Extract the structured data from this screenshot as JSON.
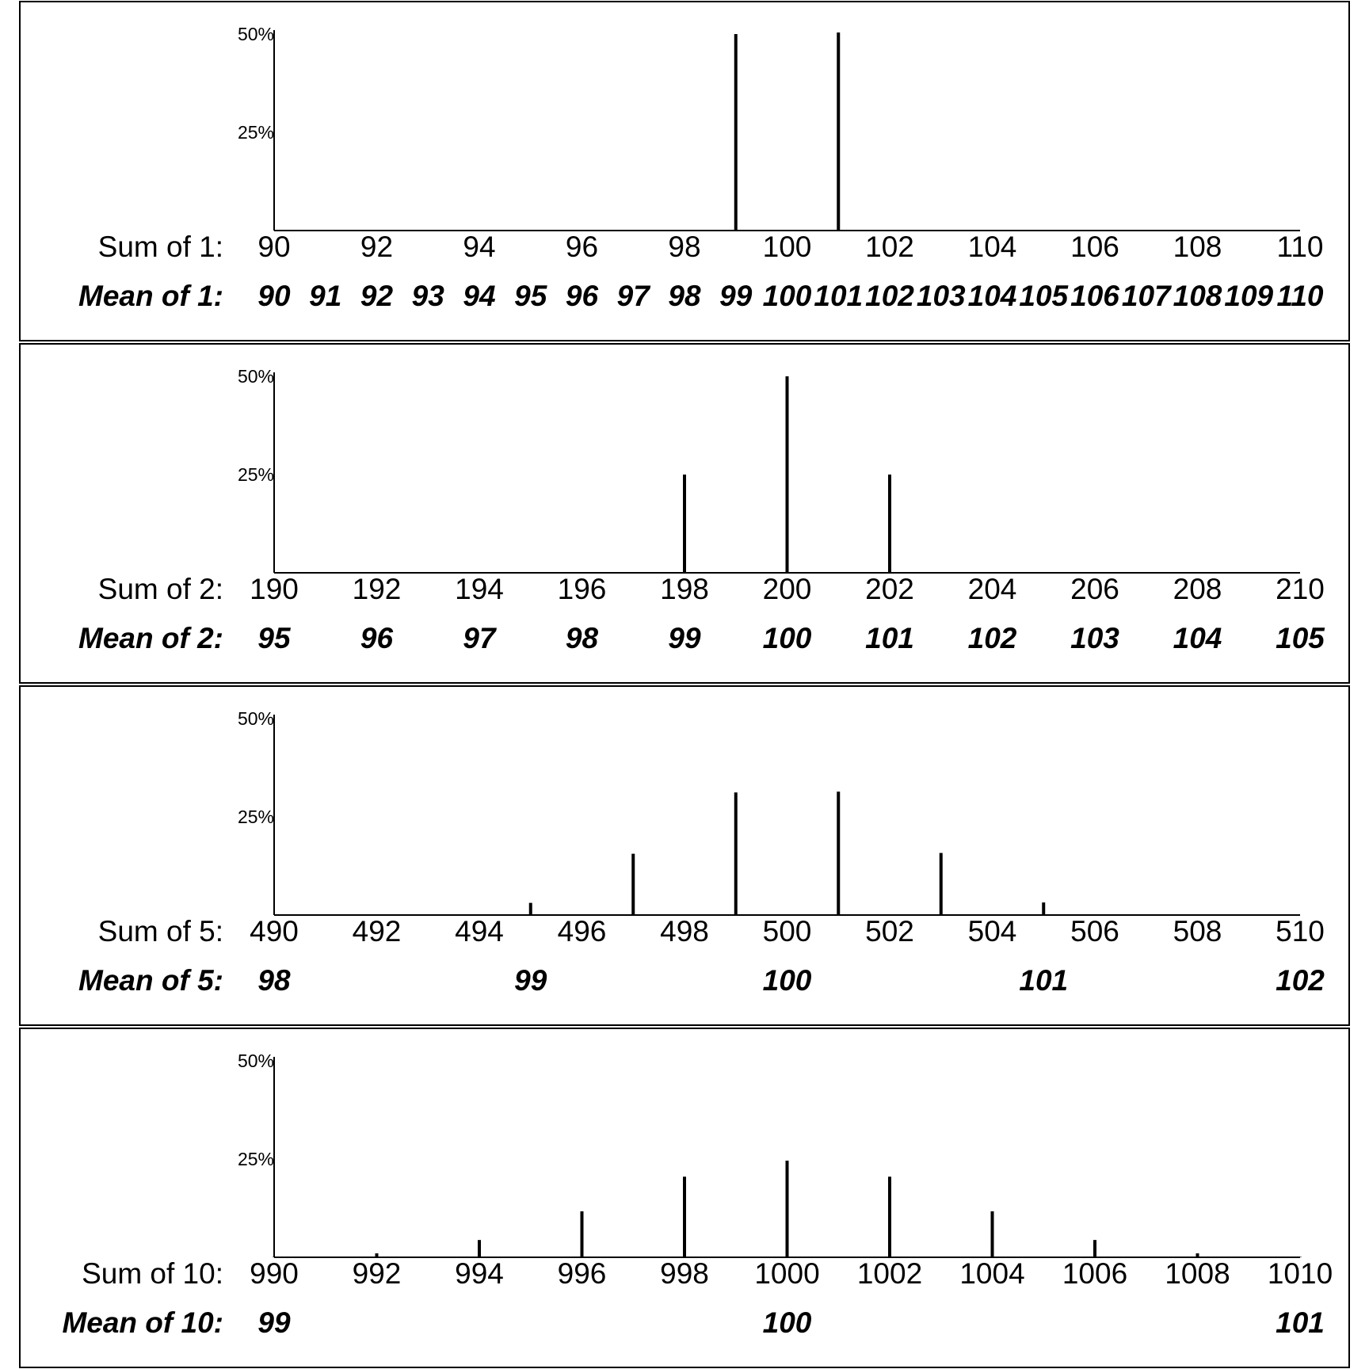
{
  "chart_data": [
    {
      "type": "bar",
      "n": 1,
      "sum_label": "Sum of 1:",
      "mean_label": "Mean of 1:",
      "y_tick_labels": [
        "50%",
        "25%"
      ],
      "y_ticks": [
        50,
        25
      ],
      "ylim": [
        0,
        51
      ],
      "xlim": [
        90,
        110
      ],
      "sum_ticks": [
        "90",
        "92",
        "94",
        "96",
        "98",
        "100",
        "102",
        "104",
        "106",
        "108",
        "110"
      ],
      "mean_ticks": [
        "90",
        "91",
        "92",
        "93",
        "94",
        "95",
        "96",
        "97",
        "98",
        "99",
        "100",
        "101",
        "102",
        "103",
        "104",
        "105",
        "106",
        "107",
        "108",
        "109",
        "110"
      ],
      "x": [
        99,
        101
      ],
      "values": [
        50,
        50.4
      ]
    },
    {
      "type": "bar",
      "n": 2,
      "sum_label": "Sum of 2:",
      "mean_label": "Mean of 2:",
      "y_tick_labels": [
        "50%",
        "25%"
      ],
      "y_ticks": [
        50,
        25
      ],
      "ylim": [
        0,
        51
      ],
      "xlim": [
        190,
        210
      ],
      "sum_ticks": [
        "190",
        "192",
        "194",
        "196",
        "198",
        "200",
        "202",
        "204",
        "206",
        "208",
        "210"
      ],
      "mean_ticks": [
        "95",
        "96",
        "97",
        "98",
        "99",
        "100",
        "101",
        "102",
        "103",
        "104",
        "105"
      ],
      "x": [
        198,
        200,
        202
      ],
      "values": [
        25,
        50,
        25
      ]
    },
    {
      "type": "bar",
      "n": 5,
      "sum_label": "Sum of 5:",
      "mean_label": "Mean of 5:",
      "y_tick_labels": [
        "50%",
        "25%"
      ],
      "y_ticks": [
        50,
        25
      ],
      "ylim": [
        0,
        51
      ],
      "xlim": [
        490,
        510
      ],
      "sum_ticks": [
        "490",
        "492",
        "494",
        "496",
        "498",
        "500",
        "502",
        "504",
        "506",
        "508",
        "510"
      ],
      "mean_ticks": [
        "98",
        "99",
        "100",
        "101",
        "102"
      ],
      "x": [
        495,
        497,
        499,
        501,
        503,
        505
      ],
      "values": [
        3.1,
        15.6,
        31.2,
        31.4,
        15.8,
        3.2
      ]
    },
    {
      "type": "bar",
      "n": 10,
      "sum_label": "Sum of 10:",
      "mean_label": "Mean of 10:",
      "y_tick_labels": [
        "50%",
        "25%"
      ],
      "y_ticks": [
        50,
        25
      ],
      "ylim": [
        0,
        51
      ],
      "xlim": [
        990,
        1010
      ],
      "sum_ticks": [
        "990",
        "992",
        "994",
        "996",
        "998",
        "1000",
        "1002",
        "1004",
        "1006",
        "1008",
        "1010"
      ],
      "mean_ticks": [
        "99",
        "100",
        "101"
      ],
      "x": [
        990,
        992,
        994,
        996,
        998,
        1000,
        1002,
        1004,
        1006,
        1008,
        1010
      ],
      "values": [
        0.1,
        1.0,
        4.4,
        11.7,
        20.5,
        24.6,
        20.5,
        11.7,
        4.4,
        1.0,
        0.1
      ]
    }
  ]
}
